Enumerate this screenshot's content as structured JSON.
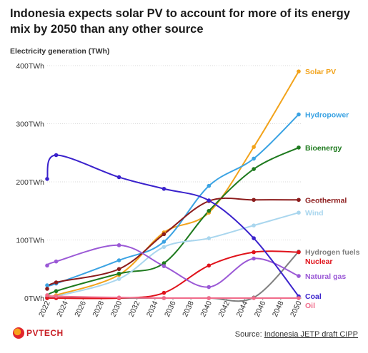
{
  "header": {
    "title": "Indonesia expects solar PV to account for more of its energy mix by 2050 than any other source"
  },
  "footer": {
    "logo_text": "PVTECH",
    "source_prefix": "Source: ",
    "source_link": "Indonesia JETP draft CIPP"
  },
  "chart_data": {
    "type": "line",
    "ylabel": "Electricity generation (TWh)",
    "x": [
      2022,
      2023,
      2030,
      2035,
      2040,
      2045,
      2050
    ],
    "x_ticks": [
      "2022",
      "2024",
      "2026",
      "2028",
      "2030",
      "2032",
      "2034",
      "2036",
      "2038",
      "2040",
      "2042",
      "2044",
      "2046",
      "2048",
      "2050"
    ],
    "y_ticks": [
      "0TWh",
      "100TWh",
      "200TWh",
      "300TWh",
      "400TWh"
    ],
    "ylim": [
      0,
      400
    ],
    "xlim": [
      2022,
      2050
    ],
    "grid": "horizontal",
    "series": [
      {
        "name": "Solar PV",
        "color": "#f2a31b",
        "values": [
          2,
          5,
          40,
          113,
          147,
          260,
          390
        ]
      },
      {
        "name": "Hydropower",
        "color": "#3ba3e3",
        "values": [
          22,
          25,
          65,
          97,
          193,
          240,
          316
        ]
      },
      {
        "name": "Bioenergy",
        "color": "#1e7a1e",
        "values": [
          2,
          12,
          42,
          60,
          150,
          222,
          259
        ]
      },
      {
        "name": "Geothermal",
        "color": "#8c1c1c",
        "values": [
          16,
          27,
          50,
          110,
          167,
          169,
          169
        ]
      },
      {
        "name": "Wind",
        "color": "#a9d6ee",
        "values": [
          2,
          3,
          33,
          88,
          103,
          125,
          147
        ]
      },
      {
        "name": "Hydrogen fuels",
        "color": "#7f7f7f",
        "values": [
          0,
          0,
          0,
          0,
          0,
          1,
          80
        ]
      },
      {
        "name": "Nuclear",
        "color": "#e0121b",
        "values": [
          0,
          0,
          0,
          9,
          56,
          79,
          79
        ]
      },
      {
        "name": "Natural gas",
        "color": "#9b59d6",
        "values": [
          56,
          63,
          91,
          55,
          19,
          68,
          38
        ]
      },
      {
        "name": "Coal",
        "color": "#3a22cc",
        "values": [
          205,
          246,
          208,
          188,
          168,
          103,
          3
        ]
      },
      {
        "name": "Oil",
        "color": "#f06b8a",
        "values": [
          5,
          3,
          1,
          0,
          0,
          0,
          0
        ]
      }
    ]
  }
}
